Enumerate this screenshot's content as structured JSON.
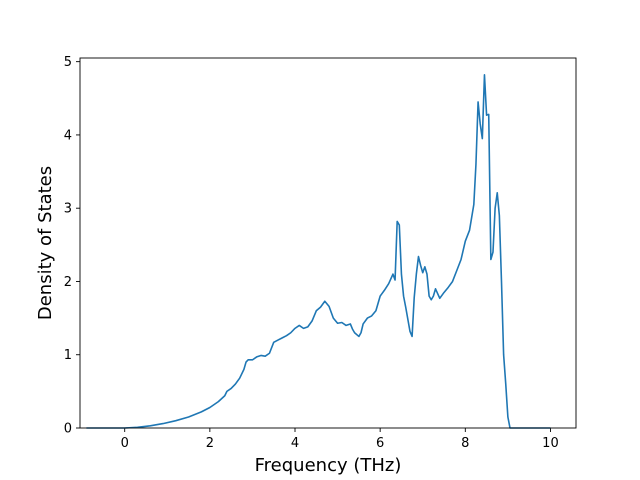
{
  "chart_data": {
    "type": "line",
    "title": "",
    "xlabel": "Frequency (THz)",
    "ylabel": "Density of States",
    "xlim": [
      -1.05,
      10.6
    ],
    "ylim": [
      0,
      5.05
    ],
    "xticks": [
      0,
      2,
      4,
      6,
      8,
      10
    ],
    "yticks": [
      0,
      1,
      2,
      3,
      4,
      5
    ],
    "grid": false,
    "line_color": "#1f77b4",
    "series": [
      {
        "x": [
          -0.9,
          -0.5,
          0.0,
          0.3,
          0.6,
          0.9,
          1.2,
          1.5,
          1.8,
          2.0,
          2.2,
          2.35,
          2.4,
          2.5,
          2.6,
          2.7,
          2.8,
          2.85,
          2.9,
          3.0,
          3.1,
          3.2,
          3.3,
          3.4,
          3.5,
          3.6,
          3.7,
          3.8,
          3.9,
          4.0,
          4.1,
          4.2,
          4.3,
          4.4,
          4.5,
          4.6,
          4.7,
          4.8,
          4.9,
          5.0,
          5.1,
          5.2,
          5.3,
          5.35,
          5.4,
          5.5,
          5.55,
          5.6,
          5.7,
          5.8,
          5.9,
          6.0,
          6.1,
          6.2,
          6.3,
          6.35,
          6.4,
          6.45,
          6.5,
          6.55,
          6.6,
          6.7,
          6.75,
          6.8,
          6.85,
          6.9,
          6.95,
          7.0,
          7.05,
          7.1,
          7.15,
          7.2,
          7.25,
          7.3,
          7.4,
          7.5,
          7.6,
          7.7,
          7.8,
          7.9,
          8.0,
          8.1,
          8.2,
          8.25,
          8.3,
          8.35,
          8.4,
          8.45,
          8.5,
          8.55,
          8.6,
          8.65,
          8.7,
          8.75,
          8.8,
          8.85,
          8.9,
          8.95,
          9.0,
          9.05,
          9.1,
          9.15,
          9.2,
          9.3,
          9.5,
          10.0
        ],
        "values": [
          0,
          0,
          0,
          0.01,
          0.03,
          0.06,
          0.1,
          0.15,
          0.22,
          0.28,
          0.36,
          0.44,
          0.5,
          0.54,
          0.6,
          0.68,
          0.8,
          0.9,
          0.93,
          0.93,
          0.97,
          0.99,
          0.98,
          1.02,
          1.17,
          1.2,
          1.23,
          1.26,
          1.3,
          1.36,
          1.4,
          1.36,
          1.38,
          1.46,
          1.6,
          1.65,
          1.73,
          1.66,
          1.5,
          1.43,
          1.44,
          1.4,
          1.42,
          1.35,
          1.3,
          1.25,
          1.3,
          1.42,
          1.5,
          1.53,
          1.6,
          1.8,
          1.88,
          1.97,
          2.1,
          2.02,
          2.82,
          2.77,
          2.1,
          1.8,
          1.65,
          1.32,
          1.25,
          1.78,
          2.1,
          2.34,
          2.22,
          2.12,
          2.2,
          2.1,
          1.8,
          1.75,
          1.8,
          1.9,
          1.77,
          1.85,
          1.92,
          2.0,
          2.15,
          2.3,
          2.55,
          2.7,
          3.05,
          3.6,
          4.45,
          4.15,
          3.95,
          4.82,
          4.27,
          4.28,
          2.3,
          2.4,
          3.0,
          3.21,
          2.9,
          2.0,
          1.0,
          0.6,
          0.15,
          0.0,
          0.0,
          0.0,
          0.0,
          0.0,
          0.0,
          0.0
        ]
      }
    ]
  }
}
